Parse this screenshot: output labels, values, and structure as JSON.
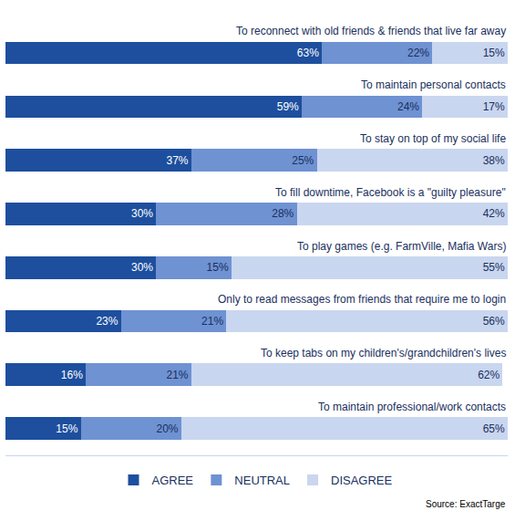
{
  "chart_data": {
    "type": "bar",
    "orientation": "horizontal",
    "stacked": true,
    "data_labels": true,
    "tick_labels": false,
    "grid": false,
    "legend": "bottom",
    "xlim": [
      0,
      100
    ],
    "categories": [
      "To reconnect with old friends & friends that live far away",
      "To maintain personal contacts",
      "To stay on top of my social life",
      "To fill downtime, Facebook is a \"guilty pleasure\"",
      "To play games (e.g. FarmVille, Mafia Wars)",
      "Only to read messages from friends that require me to login",
      "To keep tabs on my children's/grandchildren's lives",
      "To maintain professional/work contacts"
    ],
    "series": [
      {
        "name": "AGREE",
        "color": "#1d4f9e",
        "values": [
          63,
          59,
          37,
          30,
          30,
          23,
          16,
          15
        ],
        "value_labels": [
          "63%",
          "59%",
          "37%",
          "30%",
          "30%",
          "23%",
          "16%",
          "15%"
        ]
      },
      {
        "name": "NEUTRAL",
        "color": "#6f92d2",
        "values": [
          22,
          24,
          25,
          28,
          15,
          21,
          21,
          20
        ],
        "value_labels": [
          "22%",
          "24%",
          "25%",
          "28%",
          "15%",
          "21%",
          "21%",
          "20%"
        ]
      },
      {
        "name": "DISAGREE",
        "color": "#c9d6ef",
        "values": [
          15,
          17,
          38,
          42,
          55,
          56,
          62,
          65
        ],
        "value_labels": [
          "15%",
          "17%",
          "38%",
          "42%",
          "55%",
          "56%",
          "62%",
          "65%"
        ]
      }
    ],
    "annotations": [
      {
        "text": "Source: ExactTarge"
      }
    ]
  }
}
